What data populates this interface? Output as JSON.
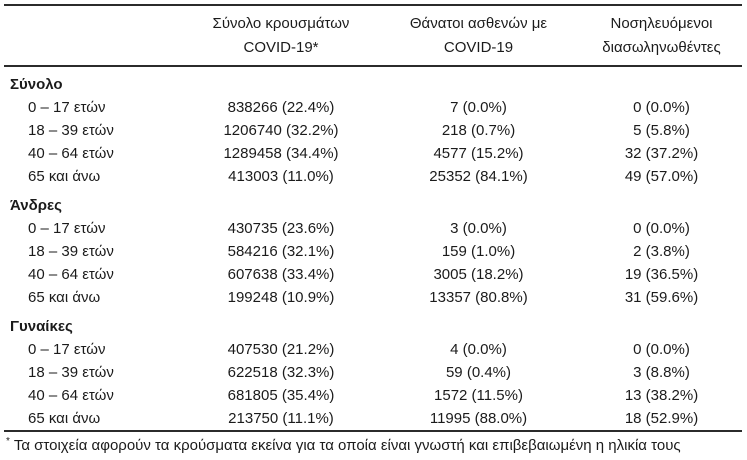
{
  "table": {
    "column_headers": [
      {
        "line1": "Σύνολο κρουσμάτων",
        "line2": "COVID-19*"
      },
      {
        "line1": "Θάνατοι ασθενών με",
        "line2": "COVID-19"
      },
      {
        "line1": "Νοσηλευόμενοι",
        "line2": "διασωληνωθέντες"
      }
    ],
    "groups": [
      {
        "label": "Σύνολο",
        "rows": [
          {
            "age": "0 – 17 ετών",
            "cases": "838266 (22.4%)",
            "deaths": "7 (0.0%)",
            "intubated": "0 (0.0%)"
          },
          {
            "age": "18 – 39 ετών",
            "cases": "1206740 (32.2%)",
            "deaths": "218 (0.7%)",
            "intubated": "5 (5.8%)"
          },
          {
            "age": "40 – 64 ετών",
            "cases": "1289458 (34.4%)",
            "deaths": "4577 (15.2%)",
            "intubated": "32 (37.2%)"
          },
          {
            "age": "65 και άνω",
            "cases": "413003 (11.0%)",
            "deaths": "25352 (84.1%)",
            "intubated": "49 (57.0%)"
          }
        ]
      },
      {
        "label": "Άνδρες",
        "rows": [
          {
            "age": "0 – 17 ετών",
            "cases": "430735 (23.6%)",
            "deaths": "3 (0.0%)",
            "intubated": "0 (0.0%)"
          },
          {
            "age": "18 – 39 ετών",
            "cases": "584216 (32.1%)",
            "deaths": "159 (1.0%)",
            "intubated": "2 (3.8%)"
          },
          {
            "age": "40 – 64 ετών",
            "cases": "607638 (33.4%)",
            "deaths": "3005 (18.2%)",
            "intubated": "19 (36.5%)"
          },
          {
            "age": "65 και άνω",
            "cases": "199248 (10.9%)",
            "deaths": "13357 (80.8%)",
            "intubated": "31 (59.6%)"
          }
        ]
      },
      {
        "label": "Γυναίκες",
        "rows": [
          {
            "age": "0 – 17 ετών",
            "cases": "407530 (21.2%)",
            "deaths": "4 (0.0%)",
            "intubated": "0 (0.0%)"
          },
          {
            "age": "18 – 39 ετών",
            "cases": "622518 (32.3%)",
            "deaths": "59 (0.4%)",
            "intubated": "3 (8.8%)"
          },
          {
            "age": "40 – 64 ετών",
            "cases": "681805 (35.4%)",
            "deaths": "1572 (11.5%)",
            "intubated": "13 (38.2%)"
          },
          {
            "age": "65 και άνω",
            "cases": "213750 (11.1%)",
            "deaths": "11995 (88.0%)",
            "intubated": "18 (52.9%)"
          }
        ]
      }
    ],
    "footnote_marker": "*",
    "footnote_text": "Τα στοιχεία αφορούν τα κρούσματα εκείνα για τα οποία είναι γνωστή και επιβεβαιωμένη η ηλικία τους"
  },
  "colors": {
    "text": "#1b1b1b",
    "rule": "#2b2b2b",
    "background": "#ffffff"
  }
}
